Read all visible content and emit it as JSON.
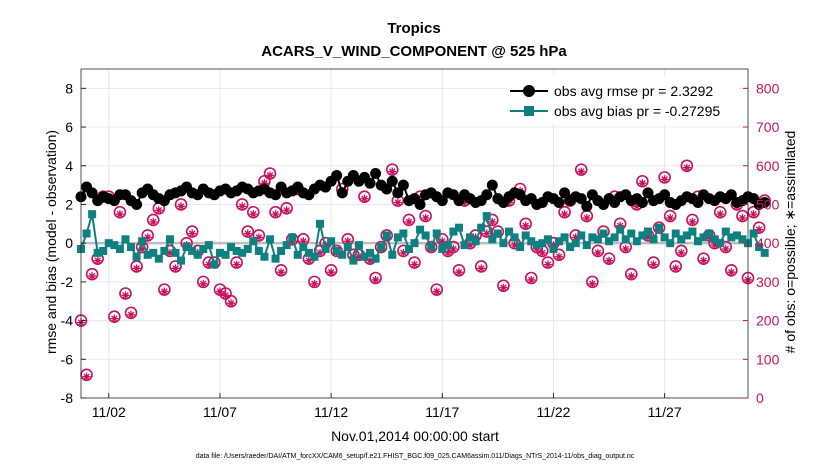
{
  "colors": {
    "rmse": "#000000",
    "bias": "#0f8080",
    "obs": "#c7135c",
    "zero_line": "#bdbdbd",
    "grid": "#e8e8e8"
  },
  "chart_data": {
    "type": "line",
    "title": "Tropics",
    "subtitle": "ACARS_V_WIND_COMPONENT @ 525 hPa",
    "xlabel": "Nov.01,2014 00:00:00 start",
    "ylabel": "rmse and bias (model - observation)",
    "ylabel_right": "# of obs: o=possible; ∗=assimilated",
    "footnote": "data file: /Users/raeder/DAI/ATM_forcXX/CAM6_setup/f.e21.FHIST_BGC.f09_025.CAM6assim.011/Diags_NTrS_2014-11/obs_diag_output.nc",
    "grid": true,
    "legend_position": "top-right",
    "xlim": [
      0.5,
      30.5
    ],
    "ylim": [
      -8,
      9
    ],
    "ylim_right": [
      0,
      850
    ],
    "x_ticks": [
      1.75,
      6.75,
      11.75,
      16.75,
      21.75,
      26.75
    ],
    "x_tick_labels": [
      "11/02",
      "11/07",
      "11/12",
      "11/17",
      "11/22",
      "11/27"
    ],
    "y_ticks": [
      -8,
      -6,
      -4,
      -2,
      0,
      2,
      4,
      6,
      8
    ],
    "y_ticks_right": [
      0,
      100,
      200,
      300,
      400,
      500,
      600,
      700,
      800
    ],
    "series": [
      {
        "name": "obs avg rmse pr = 2.3292",
        "axis": "left",
        "marker": "circle",
        "x_start": 0.5,
        "x_step": 0.25,
        "values": [
          2.4,
          2.9,
          2.6,
          2.2,
          2.4,
          2.3,
          2.2,
          2.5,
          2.5,
          2.2,
          2.0,
          2.6,
          2.8,
          2.5,
          2.3,
          2.2,
          2.5,
          2.6,
          2.7,
          2.9,
          2.6,
          2.5,
          2.8,
          2.6,
          2.5,
          2.7,
          2.8,
          2.6,
          2.7,
          2.9,
          2.8,
          2.6,
          2.7,
          2.8,
          2.6,
          2.5,
          2.9,
          2.6,
          2.7,
          2.9,
          2.6,
          2.5,
          2.8,
          3.0,
          2.9,
          3.2,
          3.5,
          2.6,
          3.2,
          3.5,
          3.2,
          3.4,
          3.1,
          3.6,
          3.0,
          2.8,
          3.2,
          2.6,
          3.0,
          2.2,
          2.3,
          2.0,
          2.5,
          2.6,
          2.4,
          2.2,
          2.6,
          2.5,
          2.2,
          2.5,
          2.3,
          2.1,
          2.2,
          2.5,
          3.0,
          2.3,
          2.1,
          2.4,
          2.6,
          2.5,
          2.2,
          2.3,
          2.0,
          2.1,
          2.4,
          2.3,
          2.1,
          2.6,
          2.2,
          2.4,
          2.3,
          1.9,
          2.5,
          2.2,
          2.0,
          2.3,
          2.1,
          2.4,
          2.5,
          2.2,
          2.3,
          2.1,
          2.6,
          2.2,
          2.3,
          2.5,
          2.1,
          2.0,
          2.2,
          2.4,
          2.3,
          2.1,
          2.5,
          2.3,
          2.2,
          2.4,
          2.3,
          2.5,
          2.1,
          2.2,
          2.4,
          2.3,
          2.0,
          2.1
        ]
      },
      {
        "name": "obs avg bias pr = -0.27295",
        "axis": "left",
        "marker": "square",
        "x_start": 0.5,
        "x_step": 0.25,
        "values": [
          -0.3,
          0.5,
          1.5,
          -0.5,
          -0.4,
          0.0,
          -0.1,
          -0.3,
          0.2,
          -0.2,
          -0.7,
          0.1,
          -0.6,
          -0.5,
          -0.8,
          -0.4,
          0.2,
          -0.5,
          -0.9,
          -0.2,
          -0.4,
          -0.6,
          -0.3,
          -0.1,
          -1.1,
          -0.5,
          -0.6,
          -0.2,
          -0.4,
          -0.5,
          -0.3,
          0.1,
          -0.4,
          -0.7,
          0.2,
          -0.8,
          -0.4,
          -0.1,
          0.3,
          -0.6,
          -0.2,
          -0.5,
          -0.7,
          1.0,
          -0.3,
          0.1,
          -0.4,
          -0.6,
          -0.2,
          -0.9,
          -0.1,
          -0.7,
          -0.5,
          -0.8,
          -0.2,
          0.4,
          -0.6,
          0.3,
          0.5,
          -0.3,
          0.0,
          0.7,
          0.4,
          -0.2,
          0.5,
          -0.3,
          -0.1,
          0.6,
          0.8,
          -0.1,
          0.3,
          0.1,
          0.8,
          1.4,
          0.2,
          0.5,
          0.0,
          0.6,
          0.3,
          -0.2,
          0.4,
          0.1,
          -0.1,
          0.0,
          0.2,
          -0.3,
          0.1,
          0.3,
          -0.2,
          0.0,
          0.4,
          -0.1,
          0.3,
          0.2,
          0.5,
          0.1,
          0.3,
          0.7,
          0.2,
          0.5,
          0.1,
          0.4,
          0.6,
          0.2,
          0.8,
          0.3,
          0.0,
          0.5,
          0.2,
          0.4,
          0.6,
          0.1,
          0.3,
          0.5,
          0.2,
          0.0,
          0.6,
          0.3,
          0.4,
          0.2,
          0.0,
          0.5,
          -0.2,
          -0.5
        ]
      },
      {
        "name": "obs possible",
        "axis": "right",
        "marker": "circle-open",
        "x_start": 0.5,
        "x_step": 0.25,
        "values": [
          200,
          60,
          320,
          360,
          520,
          520,
          210,
          480,
          270,
          220,
          340,
          390,
          420,
          460,
          490,
          280,
          380,
          340,
          500,
          400,
          430,
          380,
          300,
          350,
          350,
          280,
          270,
          250,
          350,
          500,
          430,
          480,
          420,
          560,
          580,
          480,
          330,
          490,
          410,
          540,
          410,
          360,
          300,
          380,
          400,
          330,
          380,
          540,
          410,
          370,
          370,
          520,
          360,
          310,
          390,
          420,
          590,
          510,
          380,
          460,
          350,
          520,
          470,
          390,
          280,
          410,
          380,
          390,
          330,
          510,
          400,
          420,
          340,
          430,
          460,
          430,
          290,
          510,
          400,
          540,
          450,
          310,
          390,
          380,
          350,
          400,
          370,
          480,
          510,
          420,
          590,
          470,
          300,
          380,
          430,
          360,
          520,
          450,
          390,
          320,
          500,
          560,
          420,
          350,
          440,
          570,
          470,
          340,
          380,
          600,
          460,
          520,
          360,
          420,
          400,
          480,
          390,
          330,
          500,
          470,
          310,
          480,
          440,
          510
        ]
      },
      {
        "name": "obs assimilated",
        "axis": "right",
        "marker": "asterisk",
        "x_start": 0.5,
        "x_step": 0.25,
        "values": [
          195,
          55,
          315,
          355,
          515,
          515,
          205,
          475,
          265,
          215,
          335,
          385,
          415,
          455,
          485,
          275,
          375,
          335,
          495,
          395,
          425,
          375,
          295,
          345,
          345,
          275,
          265,
          245,
          345,
          495,
          425,
          475,
          415,
          555,
          575,
          475,
          325,
          485,
          405,
          535,
          405,
          355,
          295,
          375,
          395,
          325,
          375,
          535,
          405,
          365,
          365,
          515,
          355,
          305,
          385,
          415,
          585,
          505,
          375,
          455,
          345,
          515,
          465,
          385,
          275,
          405,
          375,
          385,
          325,
          505,
          395,
          415,
          335,
          425,
          455,
          425,
          285,
          505,
          395,
          535,
          445,
          305,
          385,
          375,
          345,
          395,
          365,
          475,
          505,
          415,
          585,
          465,
          295,
          375,
          425,
          355,
          515,
          445,
          385,
          315,
          495,
          555,
          415,
          345,
          435,
          565,
          465,
          335,
          375,
          595,
          455,
          515,
          355,
          415,
          395,
          475,
          385,
          325,
          495,
          465,
          305,
          475,
          435,
          505
        ]
      }
    ]
  }
}
